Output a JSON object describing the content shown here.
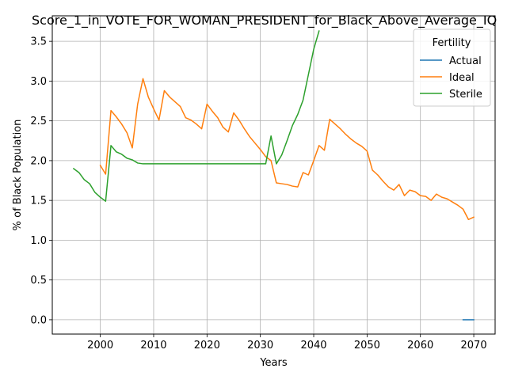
{
  "chart_data": {
    "type": "line",
    "title": "Score_1_in_VOTE_FOR_WOMAN_PRESIDENT_for_Black_Above_Average_IQ",
    "xlabel": "Years",
    "ylabel": "% of Black Population",
    "xlim": [
      1991,
      2074
    ],
    "ylim": [
      -0.18,
      3.82
    ],
    "xticks": [
      2000,
      2010,
      2020,
      2030,
      2040,
      2050,
      2060,
      2070
    ],
    "yticks": [
      0.0,
      0.5,
      1.0,
      1.5,
      2.0,
      2.5,
      3.0,
      3.5
    ],
    "ytick_labels": [
      "0.0",
      "0.5",
      "1.0",
      "1.5",
      "2.0",
      "2.5",
      "3.0",
      "3.5"
    ],
    "grid": true,
    "legend": {
      "title": "Fertility",
      "placement": "top-right",
      "entries": [
        "Actual",
        "Ideal",
        "Sterile"
      ]
    },
    "series": [
      {
        "name": "Actual",
        "color": "#1f77b4",
        "x": [
          2068,
          2069,
          2070
        ],
        "y": [
          0.0,
          0.0,
          0.0
        ]
      },
      {
        "name": "Ideal",
        "color": "#ff7f0e",
        "x": [
          2000,
          2001,
          2002,
          2003,
          2004,
          2005,
          2006,
          2007,
          2008,
          2009,
          2010,
          2011,
          2012,
          2013,
          2014,
          2015,
          2016,
          2017,
          2018,
          2019,
          2020,
          2021,
          2022,
          2023,
          2024,
          2025,
          2026,
          2027,
          2028,
          2029,
          2030,
          2031,
          2032,
          2033,
          2034,
          2035,
          2036,
          2037,
          2038,
          2039,
          2040,
          2041,
          2042,
          2043,
          2044,
          2045,
          2046,
          2047,
          2048,
          2049,
          2050,
          2051,
          2052,
          2053,
          2054,
          2055,
          2056,
          2057,
          2058,
          2059,
          2060,
          2061,
          2062,
          2063,
          2064,
          2065,
          2066,
          2067,
          2068,
          2069,
          2070
        ],
        "y": [
          1.94,
          1.83,
          2.63,
          2.55,
          2.46,
          2.35,
          2.16,
          2.71,
          3.03,
          2.8,
          2.65,
          2.51,
          2.88,
          2.8,
          2.74,
          2.68,
          2.54,
          2.51,
          2.46,
          2.4,
          2.71,
          2.62,
          2.54,
          2.42,
          2.36,
          2.6,
          2.51,
          2.4,
          2.3,
          2.22,
          2.14,
          2.05,
          2.0,
          1.72,
          1.71,
          1.7,
          1.68,
          1.67,
          1.85,
          1.82,
          2.0,
          2.19,
          2.13,
          2.52,
          2.46,
          2.4,
          2.33,
          2.27,
          2.22,
          2.18,
          2.12,
          1.88,
          1.82,
          1.74,
          1.67,
          1.63,
          1.7,
          1.56,
          1.63,
          1.61,
          1.56,
          1.55,
          1.5,
          1.58,
          1.54,
          1.52,
          1.48,
          1.44,
          1.39,
          1.26,
          1.29
        ]
      },
      {
        "name": "Sterile",
        "color": "#2ca02c",
        "x": [
          1995,
          1996,
          1997,
          1998,
          1999,
          2000,
          2001,
          2002,
          2003,
          2004,
          2005,
          2006,
          2007,
          2008,
          2009,
          2010,
          2011,
          2012,
          2013,
          2014,
          2015,
          2016,
          2017,
          2018,
          2019,
          2020,
          2021,
          2022,
          2023,
          2024,
          2025,
          2026,
          2027,
          2028,
          2029,
          2030,
          2031,
          2032,
          2033,
          2034,
          2035,
          2036,
          2037,
          2038,
          2039,
          2040,
          2041
        ],
        "y": [
          1.9,
          1.85,
          1.76,
          1.71,
          1.6,
          1.54,
          1.49,
          2.19,
          2.11,
          2.08,
          2.03,
          2.01,
          1.97,
          1.96,
          1.96,
          1.96,
          1.96,
          1.96,
          1.96,
          1.96,
          1.96,
          1.96,
          1.96,
          1.96,
          1.96,
          1.96,
          1.96,
          1.96,
          1.96,
          1.96,
          1.96,
          1.96,
          1.96,
          1.96,
          1.96,
          1.96,
          1.96,
          2.31,
          1.96,
          2.07,
          2.25,
          2.44,
          2.58,
          2.76,
          3.08,
          3.4,
          3.63
        ]
      }
    ]
  }
}
